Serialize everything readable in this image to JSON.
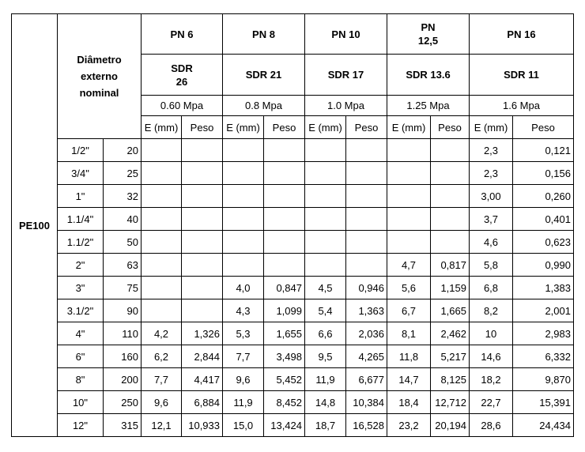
{
  "table": {
    "material": "PE100",
    "diameter_header": "Diâmetro externo nominal",
    "groups": [
      {
        "pn": "PN 6",
        "sdr": "SDR 26",
        "pressure": "0.60 Mpa",
        "e_label": "E (mm)",
        "peso_label": "Peso"
      },
      {
        "pn": "PN 8",
        "sdr": "SDR 21",
        "pressure": "0.8 Mpa",
        "e_label": "E (mm)",
        "peso_label": "Peso"
      },
      {
        "pn": "PN 10",
        "sdr": "SDR 17",
        "pressure": "1.0 Mpa",
        "e_label": "E (mm)",
        "peso_label": "Peso"
      },
      {
        "pn": "PN 12,5",
        "sdr": "SDR 13.6",
        "pressure": "1.25 Mpa",
        "e_label": "E (mm)",
        "peso_label": "Peso"
      },
      {
        "pn": "PN 16",
        "sdr": "SDR 11",
        "pressure": "1.6 Mpa",
        "e_label": "E (mm)",
        "peso_label": "Peso"
      }
    ],
    "rows": [
      {
        "inch": "1/2\"",
        "mm": "20",
        "cells": [
          null,
          null,
          null,
          null,
          null,
          null,
          null,
          null,
          "2,3",
          "0,121"
        ]
      },
      {
        "inch": "3/4\"",
        "mm": "25",
        "cells": [
          null,
          null,
          null,
          null,
          null,
          null,
          null,
          null,
          "2,3",
          "0,156"
        ]
      },
      {
        "inch": "1\"",
        "mm": "32",
        "cells": [
          null,
          null,
          null,
          null,
          null,
          null,
          null,
          null,
          "3,00",
          "0,260"
        ]
      },
      {
        "inch": "1.1/4\"",
        "mm": "40",
        "cells": [
          null,
          null,
          null,
          null,
          null,
          null,
          null,
          null,
          "3,7",
          "0,401"
        ]
      },
      {
        "inch": "1.1/2\"",
        "mm": "50",
        "cells": [
          null,
          null,
          null,
          null,
          null,
          null,
          null,
          null,
          "4,6",
          "0,623"
        ]
      },
      {
        "inch": "2\"",
        "mm": "63",
        "cells": [
          null,
          null,
          null,
          null,
          null,
          null,
          "4,7",
          "0,817",
          "5,8",
          "0,990"
        ]
      },
      {
        "inch": "3\"",
        "mm": "75",
        "cells": [
          null,
          null,
          "4,0",
          "0,847",
          "4,5",
          "0,946",
          "5,6",
          "1,159",
          "6,8",
          "1,383"
        ]
      },
      {
        "inch": "3.1/2\"",
        "mm": "90",
        "cells": [
          null,
          null,
          "4,3",
          "1,099",
          "5,4",
          "1,363",
          "6,7",
          "1,665",
          "8,2",
          "2,001"
        ]
      },
      {
        "inch": "4\"",
        "mm": "110",
        "cells": [
          "4,2",
          "1,326",
          "5,3",
          "1,655",
          "6,6",
          "2,036",
          "8,1",
          "2,462",
          "10",
          "2,983"
        ]
      },
      {
        "inch": "6\"",
        "mm": "160",
        "cells": [
          "6,2",
          "2,844",
          "7,7",
          "3,498",
          "9,5",
          "4,265",
          "11,8",
          "5,217",
          "14,6",
          "6,332"
        ]
      },
      {
        "inch": "8\"",
        "mm": "200",
        "cells": [
          "7,7",
          "4,417",
          "9,6",
          "5,452",
          "11,9",
          "6,677",
          "14,7",
          "8,125",
          "18,2",
          "9,870"
        ]
      },
      {
        "inch": "10\"",
        "mm": "250",
        "cells": [
          "9,6",
          "6,884",
          "11,9",
          "8,452",
          "14,8",
          "10,384",
          "18,4",
          "12,712",
          "22,7",
          "15,391"
        ]
      },
      {
        "inch": "12\"",
        "mm": "315",
        "cells": [
          "12,1",
          "10,933",
          "15,0",
          "13,424",
          "18,7",
          "16,528",
          "23,2",
          "20,194",
          "28,6",
          "24,434"
        ]
      }
    ]
  }
}
